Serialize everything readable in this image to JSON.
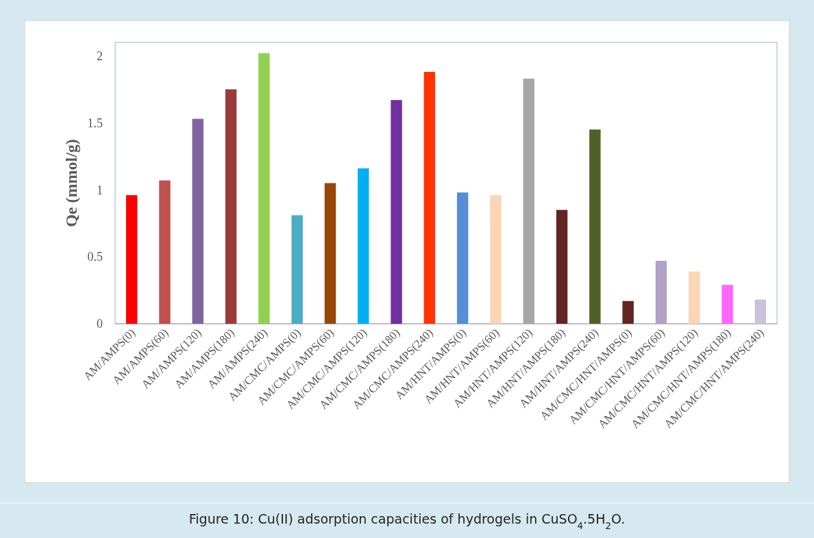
{
  "chart_data": {
    "type": "bar",
    "ylabel": "Qe (mmol/g)",
    "annotations": [
      "Figure 10: Cu(II) adsorption capacities of hydrogels in CuSO$_{4}$.5H$_{2}$O."
    ],
    "categories": [
      "AM/AMPS(0)",
      "AM/AMPS(60)",
      "AM/AMPS(120)",
      "AM/AMPS(180)",
      "AM/AMPS(240)",
      "AM/CMC/AMPS(0)",
      "AM/CMC/AMPS(60)",
      "AM/CMC/AMPS(120)",
      "AM/CMC/AMPS(180)",
      "AM/CMC/AMPS(240)",
      "AM/HNT/AMPS(0)",
      "AM/HNT/AMPS(60)",
      "AM/HNT/AMPS(120)",
      "AM/HNT/AMPS(180)",
      "AM/HNT/AMPS(240)",
      "AM/CMC/HNT/AMPS(0)",
      "AM/CMC/HNT/AMPS(60)",
      "AM/CMC/HNT/AMPS(120)",
      "AM/CMC/HNT/AMPS(180)",
      "AM/CMC/HNT/AMPS(240)"
    ],
    "values": [
      0.96,
      1.07,
      1.53,
      1.75,
      2.02,
      0.81,
      1.05,
      1.16,
      1.67,
      1.88,
      0.98,
      0.96,
      1.83,
      0.85,
      1.45,
      0.17,
      0.47,
      0.39,
      0.29,
      0.18
    ],
    "colors": [
      "#ff0000",
      "#c0504d",
      "#8064a2",
      "#9b3a3a",
      "#92d050",
      "#4bacc6",
      "#974706",
      "#00b0f0",
      "#7030a0",
      "#ff3300",
      "#558ed5",
      "#fcd5b5",
      "#a6a6a6",
      "#632523",
      "#4f6228",
      "#632523",
      "#b3a2c7",
      "#fcd5b5",
      "#ff66ff",
      "#ccc0da"
    ],
    "ylim": [
      0,
      2.1
    ],
    "yticks": [
      0,
      0.5,
      1,
      1.5,
      2
    ],
    "grid": false
  }
}
